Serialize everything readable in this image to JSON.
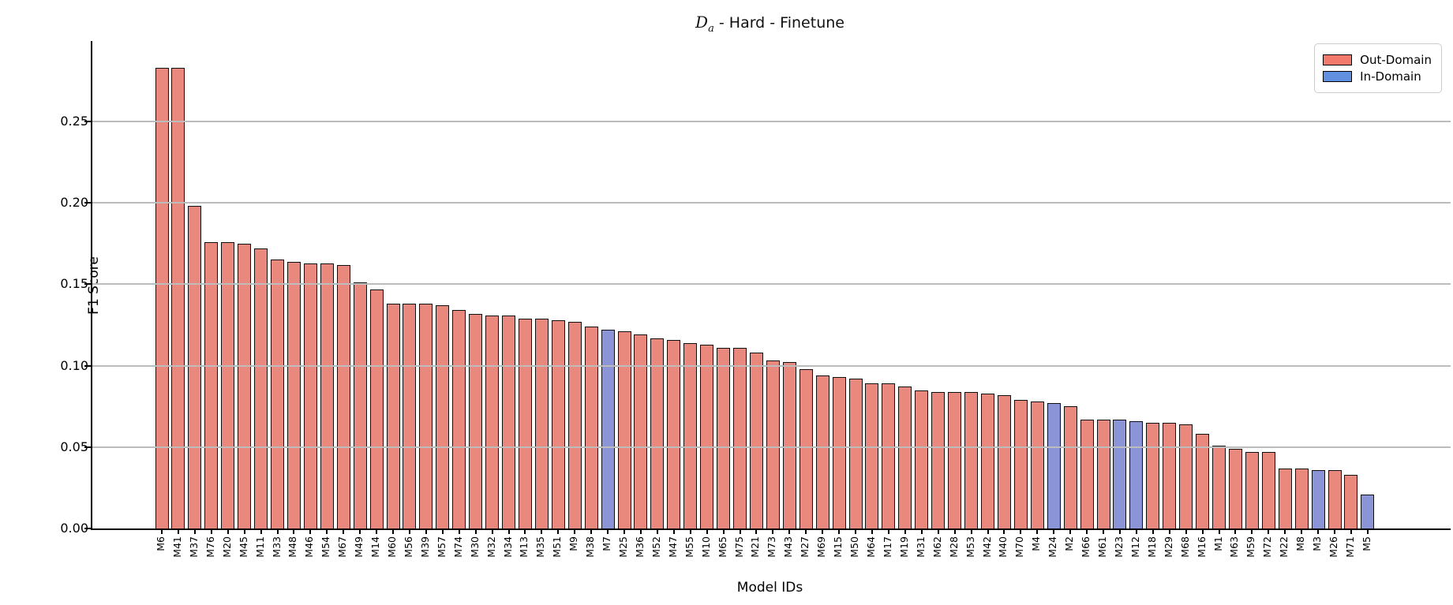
{
  "chart_data": {
    "type": "bar",
    "title": {
      "symbol": "D",
      "symbol_sub": "a",
      "rest": " - Hard - Finetune"
    },
    "xlabel": "Model IDs",
    "ylabel": "F1 Score",
    "ylim": [
      0,
      0.3
    ],
    "yticks": [
      "0.00",
      "0.05",
      "0.10",
      "0.15",
      "0.20",
      "0.25"
    ],
    "ytick_values": [
      0.0,
      0.05,
      0.1,
      0.15,
      0.2,
      0.25
    ],
    "grid": "horizontal, drawn over bars",
    "legend_position": "upper right",
    "legend": [
      {
        "label": "Out-Domain",
        "color": "#f4796d"
      },
      {
        "label": "In-Domain",
        "color": "#6190e0"
      }
    ],
    "colors": {
      "out_domain_bar": "#e9897e",
      "in_domain_bar": "#8a94d6",
      "bar_edge": "#101010",
      "gridline": "#bcbcbc"
    },
    "bars": [
      {
        "id": "M6",
        "value": 0.283,
        "domain": "out"
      },
      {
        "id": "M41",
        "value": 0.283,
        "domain": "out"
      },
      {
        "id": "M37",
        "value": 0.198,
        "domain": "out"
      },
      {
        "id": "M76",
        "value": 0.176,
        "domain": "out"
      },
      {
        "id": "M20",
        "value": 0.176,
        "domain": "out"
      },
      {
        "id": "M45",
        "value": 0.175,
        "domain": "out"
      },
      {
        "id": "M11",
        "value": 0.172,
        "domain": "out"
      },
      {
        "id": "M33",
        "value": 0.165,
        "domain": "out"
      },
      {
        "id": "M48",
        "value": 0.164,
        "domain": "out"
      },
      {
        "id": "M46",
        "value": 0.163,
        "domain": "out"
      },
      {
        "id": "M54",
        "value": 0.163,
        "domain": "out"
      },
      {
        "id": "M67",
        "value": 0.162,
        "domain": "out"
      },
      {
        "id": "M49",
        "value": 0.151,
        "domain": "out"
      },
      {
        "id": "M14",
        "value": 0.147,
        "domain": "out"
      },
      {
        "id": "M60",
        "value": 0.138,
        "domain": "out"
      },
      {
        "id": "M56",
        "value": 0.138,
        "domain": "out"
      },
      {
        "id": "M39",
        "value": 0.138,
        "domain": "out"
      },
      {
        "id": "M57",
        "value": 0.137,
        "domain": "out"
      },
      {
        "id": "M74",
        "value": 0.134,
        "domain": "out"
      },
      {
        "id": "M30",
        "value": 0.132,
        "domain": "out"
      },
      {
        "id": "M32",
        "value": 0.131,
        "domain": "out"
      },
      {
        "id": "M34",
        "value": 0.131,
        "domain": "out"
      },
      {
        "id": "M13",
        "value": 0.129,
        "domain": "out"
      },
      {
        "id": "M35",
        "value": 0.129,
        "domain": "out"
      },
      {
        "id": "M51",
        "value": 0.128,
        "domain": "out"
      },
      {
        "id": "M9",
        "value": 0.127,
        "domain": "out"
      },
      {
        "id": "M38",
        "value": 0.124,
        "domain": "out"
      },
      {
        "id": "M7",
        "value": 0.122,
        "domain": "in"
      },
      {
        "id": "M25",
        "value": 0.121,
        "domain": "out"
      },
      {
        "id": "M36",
        "value": 0.119,
        "domain": "out"
      },
      {
        "id": "M52",
        "value": 0.117,
        "domain": "out"
      },
      {
        "id": "M47",
        "value": 0.116,
        "domain": "out"
      },
      {
        "id": "M55",
        "value": 0.114,
        "domain": "out"
      },
      {
        "id": "M10",
        "value": 0.113,
        "domain": "out"
      },
      {
        "id": "M65",
        "value": 0.111,
        "domain": "out"
      },
      {
        "id": "M75",
        "value": 0.111,
        "domain": "out"
      },
      {
        "id": "M21",
        "value": 0.108,
        "domain": "out"
      },
      {
        "id": "M73",
        "value": 0.103,
        "domain": "out"
      },
      {
        "id": "M43",
        "value": 0.102,
        "domain": "out"
      },
      {
        "id": "M27",
        "value": 0.098,
        "domain": "out"
      },
      {
        "id": "M69",
        "value": 0.094,
        "domain": "out"
      },
      {
        "id": "M15",
        "value": 0.093,
        "domain": "out"
      },
      {
        "id": "M50",
        "value": 0.092,
        "domain": "out"
      },
      {
        "id": "M64",
        "value": 0.089,
        "domain": "out"
      },
      {
        "id": "M17",
        "value": 0.089,
        "domain": "out"
      },
      {
        "id": "M19",
        "value": 0.087,
        "domain": "out"
      },
      {
        "id": "M31",
        "value": 0.085,
        "domain": "out"
      },
      {
        "id": "M62",
        "value": 0.084,
        "domain": "out"
      },
      {
        "id": "M28",
        "value": 0.084,
        "domain": "out"
      },
      {
        "id": "M53",
        "value": 0.084,
        "domain": "out"
      },
      {
        "id": "M42",
        "value": 0.083,
        "domain": "out"
      },
      {
        "id": "M40",
        "value": 0.082,
        "domain": "out"
      },
      {
        "id": "M70",
        "value": 0.079,
        "domain": "out"
      },
      {
        "id": "M4",
        "value": 0.078,
        "domain": "out"
      },
      {
        "id": "M24",
        "value": 0.077,
        "domain": "in"
      },
      {
        "id": "M2",
        "value": 0.075,
        "domain": "out"
      },
      {
        "id": "M66",
        "value": 0.067,
        "domain": "out"
      },
      {
        "id": "M61",
        "value": 0.067,
        "domain": "out"
      },
      {
        "id": "M23",
        "value": 0.067,
        "domain": "in"
      },
      {
        "id": "M12",
        "value": 0.066,
        "domain": "in"
      },
      {
        "id": "M18",
        "value": 0.065,
        "domain": "out"
      },
      {
        "id": "M29",
        "value": 0.065,
        "domain": "out"
      },
      {
        "id": "M68",
        "value": 0.064,
        "domain": "out"
      },
      {
        "id": "M16",
        "value": 0.058,
        "domain": "out"
      },
      {
        "id": "M1",
        "value": 0.051,
        "domain": "out"
      },
      {
        "id": "M63",
        "value": 0.049,
        "domain": "out"
      },
      {
        "id": "M59",
        "value": 0.047,
        "domain": "out"
      },
      {
        "id": "M72",
        "value": 0.047,
        "domain": "out"
      },
      {
        "id": "M22",
        "value": 0.037,
        "domain": "out"
      },
      {
        "id": "M8",
        "value": 0.037,
        "domain": "out"
      },
      {
        "id": "M3",
        "value": 0.036,
        "domain": "in"
      },
      {
        "id": "M26",
        "value": 0.036,
        "domain": "out"
      },
      {
        "id": "M71",
        "value": 0.033,
        "domain": "out"
      },
      {
        "id": "M5",
        "value": 0.021,
        "domain": "in"
      }
    ]
  }
}
